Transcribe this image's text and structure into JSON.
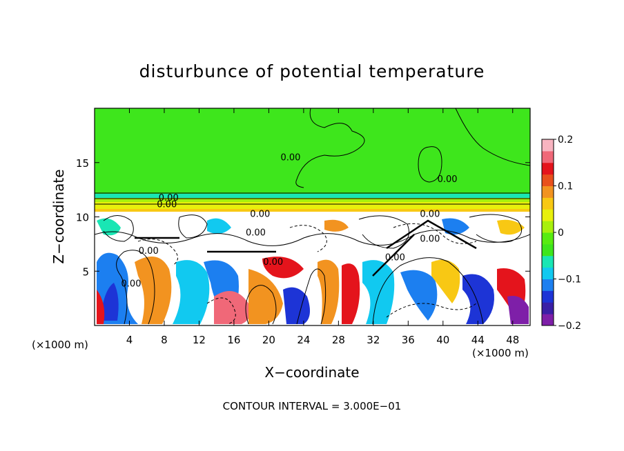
{
  "chart_data": {
    "type": "heatmap",
    "title": "disturbunce of potential temperature",
    "xlabel": "X−coordinate",
    "ylabel": "Z−coordinate",
    "x_unit_label": "(×1000 m)",
    "y_unit_label": "(×1000 m)",
    "xlim": [
      0,
      50
    ],
    "ylim": [
      0,
      20
    ],
    "x_ticks": [
      4,
      8,
      12,
      16,
      20,
      24,
      28,
      32,
      36,
      40,
      44,
      48
    ],
    "y_ticks": [
      5,
      10,
      15
    ],
    "colorbar": {
      "range": [
        -0.2,
        0.2
      ],
      "tick_values": [
        0.2,
        0.1,
        0,
        -0.1,
        -0.2
      ],
      "tick_labels": [
        "0.2",
        "0.1",
        "0",
        "−0.1",
        "−0.2"
      ],
      "colors": [
        "#7e1fa8",
        "#3a1fa6",
        "#1d34d6",
        "#1c7ff0",
        "#11c9f0",
        "#19e6b4",
        "#3ee61c",
        "#58ec10",
        "#a8f00c",
        "#e8f00c",
        "#f8c814",
        "#f29320",
        "#e8501c",
        "#e4141c",
        "#f06878",
        "#f8b4c0"
      ]
    },
    "contour_interval": "CONTOUR INTERVAL = 3.000E−01",
    "contour_labels": [
      {
        "text": "0.00",
        "x": 8.5,
        "z": 11.5
      },
      {
        "text": "0.00",
        "x": 8.3,
        "z": 10.9
      },
      {
        "text": "0.00",
        "x": 22.5,
        "z": 15.2
      },
      {
        "text": "0.00",
        "x": 40.5,
        "z": 13.2
      },
      {
        "text": "0.00",
        "x": 19.0,
        "z": 10.0
      },
      {
        "text": "0.00",
        "x": 18.5,
        "z": 8.3
      },
      {
        "text": "0.00",
        "x": 6.2,
        "z": 6.6
      },
      {
        "text": "0.00",
        "x": 20.5,
        "z": 5.6
      },
      {
        "text": "0.00",
        "x": 4.2,
        "z": 3.6
      },
      {
        "text": "0.00",
        "x": 38.5,
        "z": 10.0
      },
      {
        "text": "0.00",
        "x": 38.5,
        "z": 7.7
      },
      {
        "text": "0.00",
        "x": 34.5,
        "z": 6.0
      }
    ],
    "field_description": {
      "z_regions": [
        {
          "z_range": [
            12.2,
            20
          ],
          "value": 0.0
        },
        {
          "z_range": [
            10.6,
            12.2
          ],
          "value": 0.08
        },
        {
          "z_range": [
            0,
            10.6
          ],
          "value": "mixed"
        }
      ]
    },
    "grid": false,
    "legend_placement": "right"
  }
}
